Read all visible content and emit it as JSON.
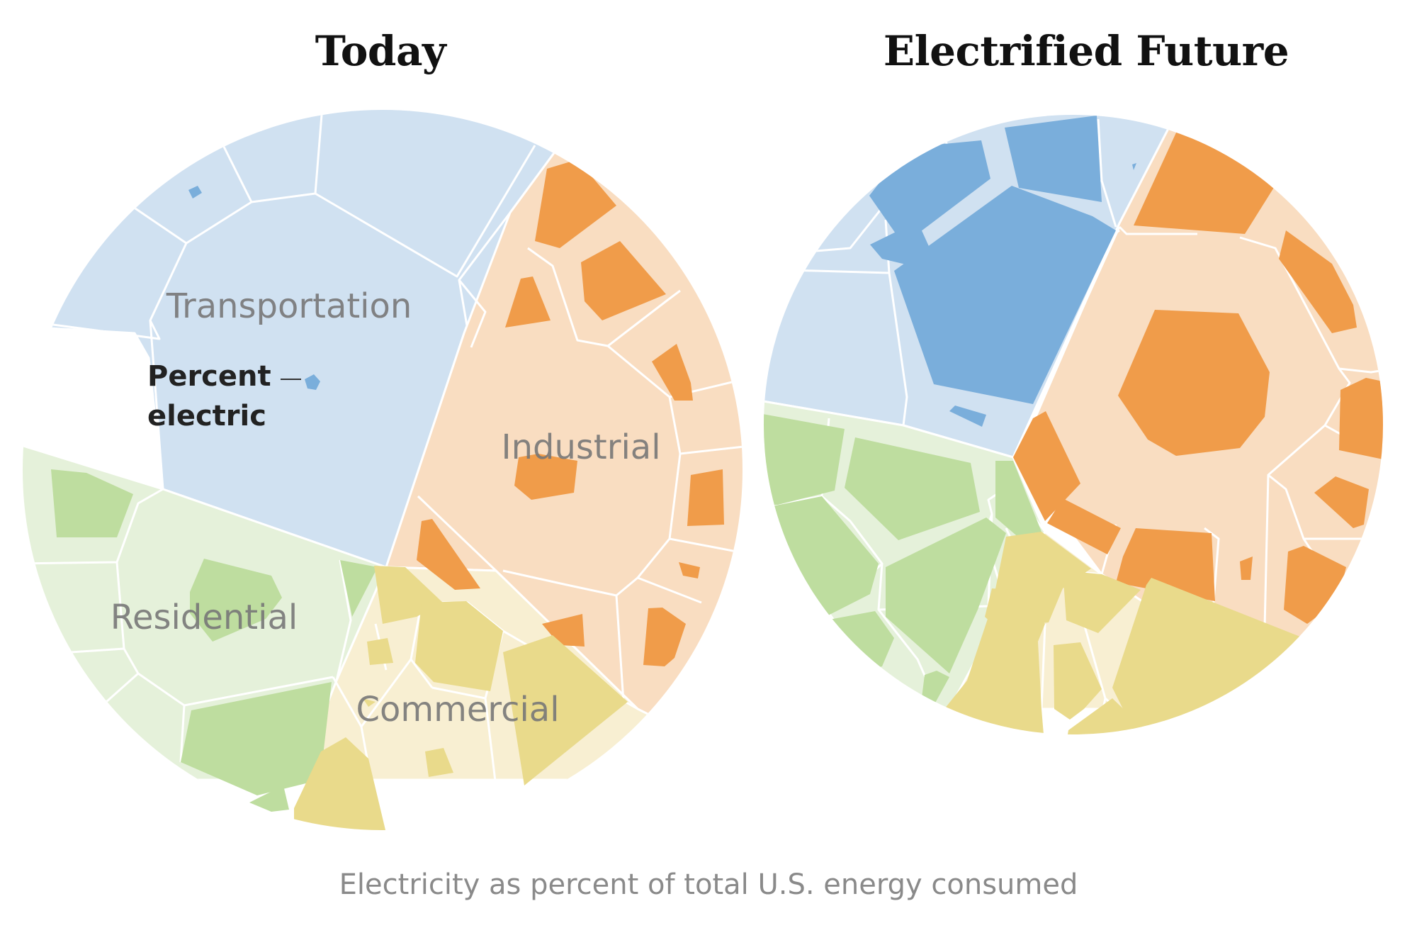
{
  "titles": {
    "left": "Today",
    "right": "Electrified Future"
  },
  "caption": "Electricity as percent of total U.S. energy consumed",
  "key": {
    "line1": "Percent",
    "line2": "electric"
  },
  "chart_data": [
    {
      "type": "voronoi-treemap",
      "title": "Today",
      "sectors": [
        {
          "name": "Transportation",
          "label": "Transportation"
        },
        {
          "name": "Industrial",
          "label": "Industrial"
        },
        {
          "name": "Residential",
          "label": "Residential"
        },
        {
          "name": "Commercial",
          "label": "Commercial"
        }
      ]
    },
    {
      "type": "voronoi-treemap",
      "title": "Electrified Future",
      "sectors": [
        {
          "name": "Transportation",
          "label": ""
        },
        {
          "name": "Industrial",
          "label": ""
        },
        {
          "name": "Residential",
          "label": ""
        },
        {
          "name": "Commercial",
          "label": ""
        }
      ]
    }
  ],
  "colors": {
    "transportation_light": "#d0e1f1",
    "transportation_dark": "#7aaedb",
    "industrial_light": "#f9ddc1",
    "industrial_dark": "#f09c4a",
    "residential_light": "#e5f1da",
    "residential_dark": "#bedd9f",
    "commercial_light": "#f8efd2",
    "commercial_dark": "#e9da8b"
  }
}
